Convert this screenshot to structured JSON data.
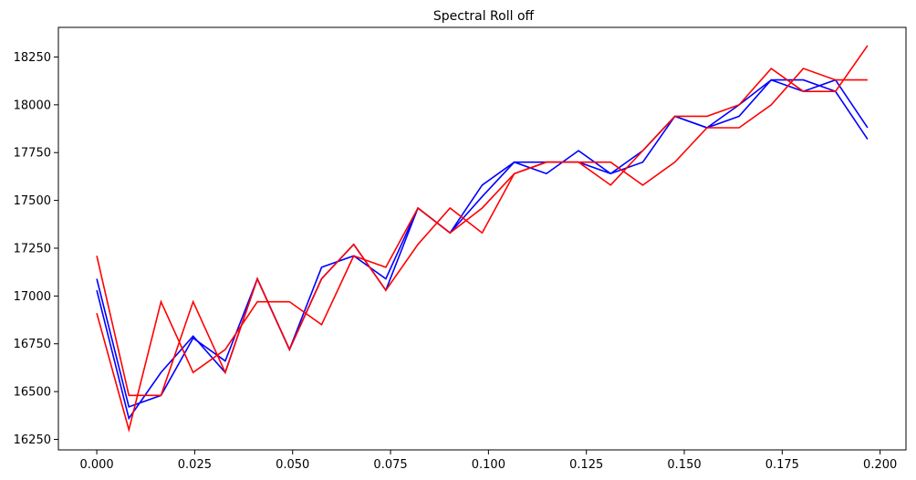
{
  "chart_data": {
    "type": "line",
    "title": "Spectral Roll off",
    "xlabel": "",
    "ylabel": "",
    "xlim": [
      -0.0098,
      0.2066
    ],
    "ylim": [
      16195,
      18405
    ],
    "x_ticks": [
      0.0,
      0.025,
      0.05,
      0.075,
      0.1,
      0.125,
      0.15,
      0.175,
      0.2
    ],
    "x_tick_labels": [
      "0.000",
      "0.025",
      "0.050",
      "0.075",
      "0.100",
      "0.125",
      "0.150",
      "0.175",
      "0.200"
    ],
    "y_ticks": [
      16250,
      16500,
      16750,
      17000,
      17250,
      17500,
      17750,
      18000,
      18250
    ],
    "y_tick_labels": [
      "16250",
      "16500",
      "16750",
      "17000",
      "17250",
      "17500",
      "17750",
      "18000",
      "18250"
    ],
    "grid": false,
    "x": [
      0.0,
      0.0082,
      0.0164,
      0.0246,
      0.0328,
      0.041,
      0.0492,
      0.0574,
      0.0656,
      0.0738,
      0.082,
      0.0902,
      0.0984,
      0.1066,
      0.1148,
      0.123,
      0.1312,
      0.1394,
      0.1476,
      0.1558,
      0.164,
      0.1722,
      0.1804,
      0.1886,
      0.1968
    ],
    "series": [
      {
        "color": "#0000ff",
        "values": [
          17090,
          16420,
          16480,
          16780,
          16660,
          17090,
          16720,
          17150,
          17210,
          17090,
          17460,
          17330,
          17580,
          17700,
          17640,
          17760,
          17640,
          17700,
          17940,
          17880,
          17940,
          18130,
          18130,
          18070,
          17820
        ]
      },
      {
        "color": "#0000ff",
        "values": [
          17030,
          16360,
          16600,
          16790,
          16600,
          17090,
          16720,
          17090,
          17270,
          17030,
          17460,
          17330,
          17520,
          17700,
          17700,
          17700,
          17640,
          17760,
          17940,
          17880,
          18000,
          18130,
          18070,
          18130,
          17880
        ]
      },
      {
        "color": "#ff0000",
        "values": [
          16910,
          16300,
          16970,
          16600,
          16720,
          16970,
          16970,
          16850,
          17210,
          17150,
          17460,
          17330,
          17460,
          17640,
          17700,
          17700,
          17580,
          17760,
          17940,
          17940,
          18000,
          18190,
          18070,
          18070,
          18310
        ]
      },
      {
        "color": "#ff0000",
        "values": [
          17210,
          16480,
          16480,
          16970,
          16600,
          17090,
          16720,
          17090,
          17270,
          17030,
          17270,
          17460,
          17330,
          17640,
          17700,
          17700,
          17700,
          17580,
          17700,
          17880,
          17880,
          18000,
          18190,
          18130,
          18130
        ]
      }
    ]
  }
}
